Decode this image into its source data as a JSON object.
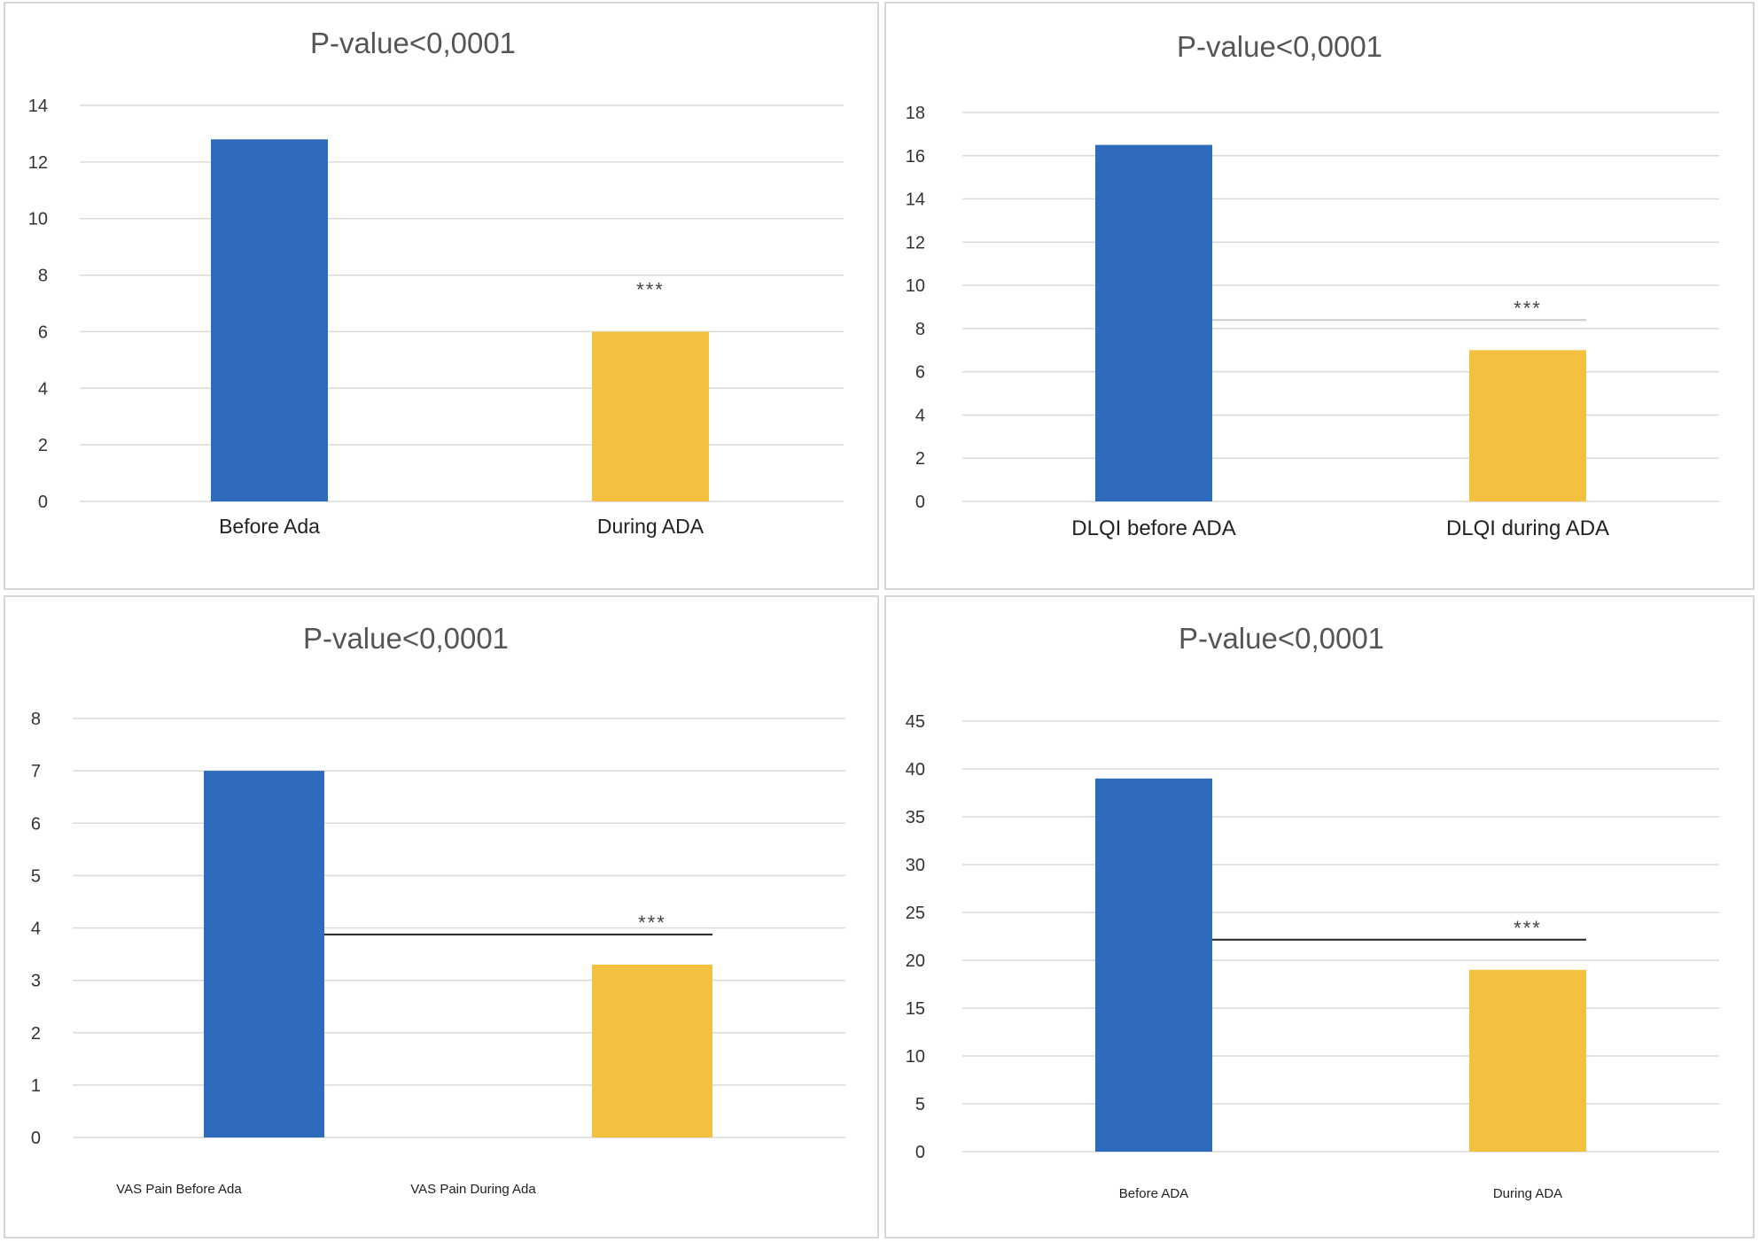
{
  "chart_data": [
    {
      "type": "bar",
      "title": "P-value<0,0001",
      "categories": [
        "Before Ada",
        "During ADA"
      ],
      "values": [
        12.8,
        6.0
      ],
      "yticks": [
        "0",
        "2",
        "4",
        "6",
        "8",
        "10",
        "12",
        "14"
      ],
      "ylim": [
        0,
        14
      ],
      "annotation": "***",
      "colors": [
        "#2e6bba",
        "#f3c03f"
      ],
      "grid": true
    },
    {
      "type": "bar",
      "title": "P-value<0,0001",
      "categories": [
        "DLQI before ADA",
        "DLQI during ADA"
      ],
      "values": [
        16.5,
        7.0
      ],
      "yticks": [
        "0",
        "2",
        "4",
        "6",
        "8",
        "10",
        "12",
        "14",
        "16",
        "18"
      ],
      "ylim": [
        0,
        18
      ],
      "annotation": "***",
      "colors": [
        "#2e6bba",
        "#f3c03f"
      ],
      "grid": true
    },
    {
      "type": "bar",
      "title": "P-value<0,0001",
      "categories": [
        "VAS Pain Before Ada",
        "VAS Pain During Ada"
      ],
      "values": [
        7.0,
        3.3
      ],
      "yticks": [
        "0",
        "1",
        "2",
        "3",
        "4",
        "5",
        "6",
        "7",
        "8"
      ],
      "ylim": [
        0,
        8
      ],
      "annotation": "***",
      "colors": [
        "#2e6bba",
        "#f3c03f"
      ],
      "grid": true
    },
    {
      "type": "bar",
      "title": "P-value<0,0001",
      "categories": [
        "Before ADA",
        "During ADA"
      ],
      "values": [
        39,
        19
      ],
      "yticks": [
        "0",
        "5",
        "10",
        "15",
        "20",
        "25",
        "30",
        "35",
        "40",
        "45"
      ],
      "ylim": [
        0,
        45
      ],
      "annotation": "***",
      "colors": [
        "#2e6bba",
        "#f3c03f"
      ],
      "grid": true
    }
  ]
}
